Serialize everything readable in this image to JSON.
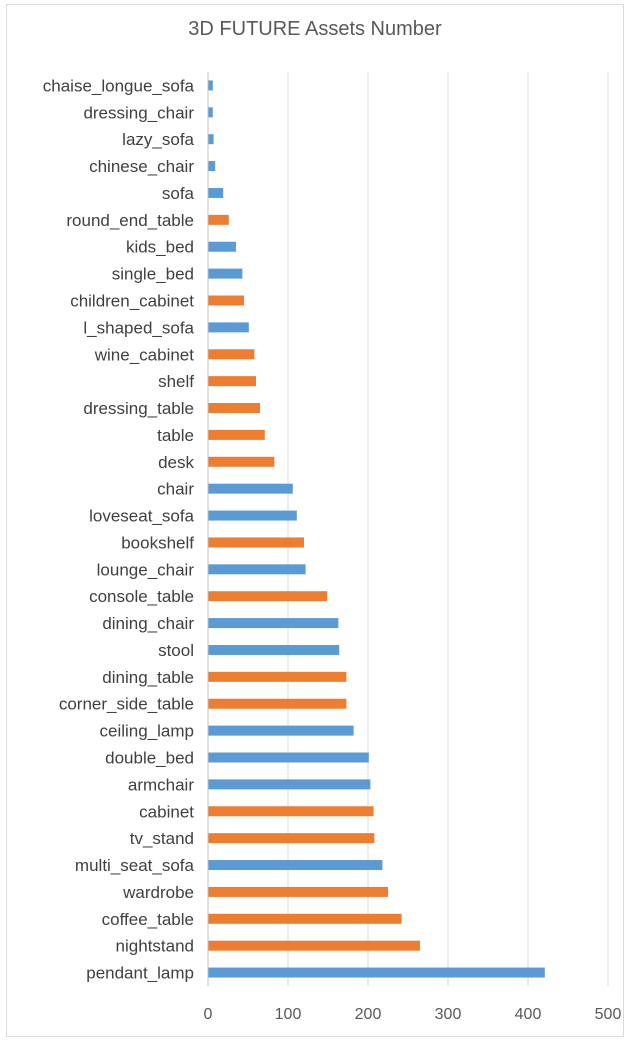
{
  "chart_data": {
    "type": "bar",
    "orientation": "horizontal",
    "title": "3D FUTURE Assets Number",
    "xlabel": "",
    "ylabel": "",
    "xlim": [
      0,
      500
    ],
    "xticks": [
      0,
      100,
      200,
      300,
      400,
      500
    ],
    "grid": "vertical",
    "legend": "none",
    "colors": {
      "blue": "#5b9bd5",
      "orange": "#ed7d31",
      "grid": "#d9d9d9",
      "axis": "#bfbfbf",
      "text": "#595959"
    },
    "categories": [
      "pendant_lamp",
      "nightstand",
      "coffee_table",
      "wardrobe",
      "multi_seat_sofa",
      "tv_stand",
      "cabinet",
      "armchair",
      "double_bed",
      "ceiling_lamp",
      "corner_side_table",
      "dining_table",
      "stool",
      "dining_chair",
      "console_table",
      "lounge_chair",
      "bookshelf",
      "loveseat_sofa",
      "chair",
      "desk",
      "table",
      "dressing_table",
      "shelf",
      "wine_cabinet",
      "l_shaped_sofa",
      "children_cabinet",
      "single_bed",
      "kids_bed",
      "round_end_table",
      "sofa",
      "chinese_chair",
      "lazy_sofa",
      "dressing_chair",
      "chaise_longue_sofa"
    ],
    "values": [
      421,
      265,
      242,
      225,
      218,
      208,
      207,
      203,
      201,
      182,
      173,
      173,
      164,
      163,
      149,
      122,
      120,
      111,
      106,
      83,
      71,
      65,
      60,
      58,
      51,
      45,
      43,
      35,
      26,
      19,
      9,
      7,
      6,
      6
    ],
    "bar_colors": [
      "blue",
      "orange",
      "orange",
      "orange",
      "blue",
      "orange",
      "orange",
      "blue",
      "blue",
      "blue",
      "orange",
      "orange",
      "blue",
      "blue",
      "orange",
      "blue",
      "orange",
      "blue",
      "blue",
      "orange",
      "orange",
      "orange",
      "orange",
      "orange",
      "blue",
      "orange",
      "blue",
      "blue",
      "orange",
      "blue",
      "blue",
      "blue",
      "blue",
      "blue"
    ]
  }
}
